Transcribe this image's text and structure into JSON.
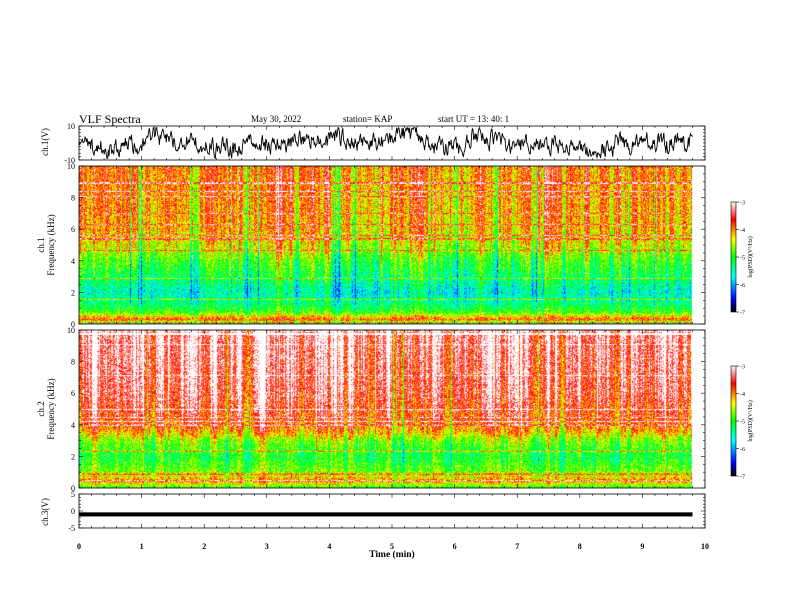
{
  "header": {
    "title": "VLF  Spectra",
    "date": "May 30, 2022",
    "station": "station= KAP",
    "start_ut": "start  UT  =   13: 40: 1"
  },
  "chart_data": [
    {
      "id": "ch1-waveform",
      "type": "line",
      "ylabel": "ch.1(V)",
      "xlim": [
        0,
        10
      ],
      "ylim": [
        -10,
        10
      ],
      "yticks": [
        10,
        -10
      ]
    },
    {
      "id": "ch1-spectrogram",
      "type": "heatmap",
      "ylabel": "ch.1\nFrequency  (kHz)",
      "xlim": [
        0,
        10
      ],
      "ylim": [
        0,
        10
      ],
      "yticks": [
        0,
        2,
        4,
        6,
        8,
        10
      ],
      "data_end_min": 9.8,
      "colorbar": {
        "label": "log(PSD)(V²/Hz)",
        "range": [
          -7,
          -3
        ],
        "ticks": [
          -3,
          -4,
          -5,
          -6,
          -7
        ]
      },
      "power_profile": [
        {
          "f": 0.0,
          "p": -5.6
        },
        {
          "f": 0.3,
          "p": -3.8
        },
        {
          "f": 0.8,
          "p": -4.9
        },
        {
          "f": 1.3,
          "p": -5.3
        },
        {
          "f": 2.0,
          "p": -5.6
        },
        {
          "f": 3.0,
          "p": -5.2
        },
        {
          "f": 4.0,
          "p": -4.9
        },
        {
          "f": 5.0,
          "p": -4.4
        },
        {
          "f": 6.0,
          "p": -4.1
        },
        {
          "f": 10.0,
          "p": -3.9
        }
      ]
    },
    {
      "id": "ch2-spectrogram",
      "type": "heatmap",
      "ylabel": "ch.2\nFrequency  (kHz)",
      "xlim": [
        0,
        10
      ],
      "ylim": [
        0,
        10
      ],
      "yticks": [
        0,
        2,
        4,
        6,
        8,
        10
      ],
      "data_end_min": 9.8,
      "colorbar": {
        "label": "log(PSD)(V²/Hz)",
        "range": [
          -7,
          -3
        ],
        "ticks": [
          -3,
          -4,
          -5,
          -6,
          -7
        ]
      },
      "power_profile": [
        {
          "f": 0.0,
          "p": -5.0
        },
        {
          "f": 0.5,
          "p": -4.0
        },
        {
          "f": 1.0,
          "p": -4.7
        },
        {
          "f": 2.0,
          "p": -5.1
        },
        {
          "f": 3.0,
          "p": -4.7
        },
        {
          "f": 3.6,
          "p": -4.1
        },
        {
          "f": 4.5,
          "p": -3.7
        },
        {
          "f": 6.0,
          "p": -3.4
        },
        {
          "f": 10.0,
          "p": -3.2
        }
      ]
    },
    {
      "id": "ch3-waveform",
      "type": "line",
      "ylabel": "ch.3(V)",
      "xlim": [
        0,
        10
      ],
      "ylim": [
        -5,
        5
      ],
      "yticks": [
        5,
        0,
        -5
      ],
      "band_level": -1.0,
      "band_half_width": 0.6
    }
  ],
  "x_axis": {
    "label": "Time  (min)",
    "ticks": [
      0,
      1,
      2,
      3,
      4,
      5,
      6,
      7,
      8,
      9,
      10
    ]
  },
  "colors": {
    "colormap": [
      "#000000",
      "#0000ff",
      "#00ffff",
      "#00ff00",
      "#ffff00",
      "#ff0000",
      "#ffffff"
    ]
  }
}
